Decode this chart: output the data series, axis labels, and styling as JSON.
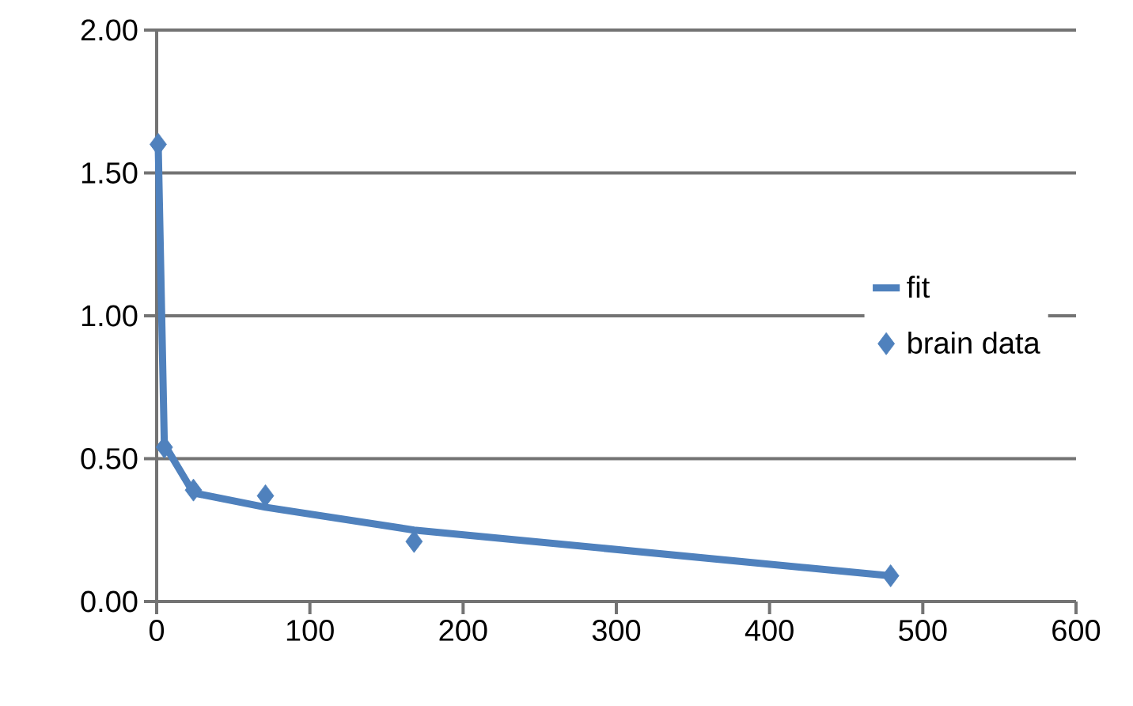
{
  "chart_data": {
    "type": "line",
    "xlim": [
      0,
      600
    ],
    "xticks": [
      0,
      100,
      200,
      300,
      400,
      500,
      600
    ],
    "ylim": [
      0,
      2
    ],
    "yticks": [
      {
        "value": 0,
        "label": "0.00"
      },
      {
        "value": 0.5,
        "label": "0.50"
      },
      {
        "value": 1,
        "label": "1.00"
      },
      {
        "value": 1.5,
        "label": "1.50"
      },
      {
        "value": 2,
        "label": "2.00"
      }
    ],
    "grid": "y",
    "legend": "right",
    "series": [
      {
        "name": "fit",
        "color": "#4f81bd",
        "marker": "none",
        "line_style": "solid",
        "x": [
          1,
          5,
          24,
          71,
          168,
          479
        ],
        "values": [
          1.6,
          0.55,
          0.38,
          0.33,
          0.25,
          0.09
        ]
      },
      {
        "name": "brain data",
        "type": "scatter",
        "color": "#4f81bd",
        "marker": "diamond",
        "x": [
          1,
          5,
          24,
          71,
          168,
          479
        ],
        "values": [
          1.6,
          0.54,
          0.39,
          0.37,
          0.21,
          0.09
        ]
      }
    ]
  }
}
